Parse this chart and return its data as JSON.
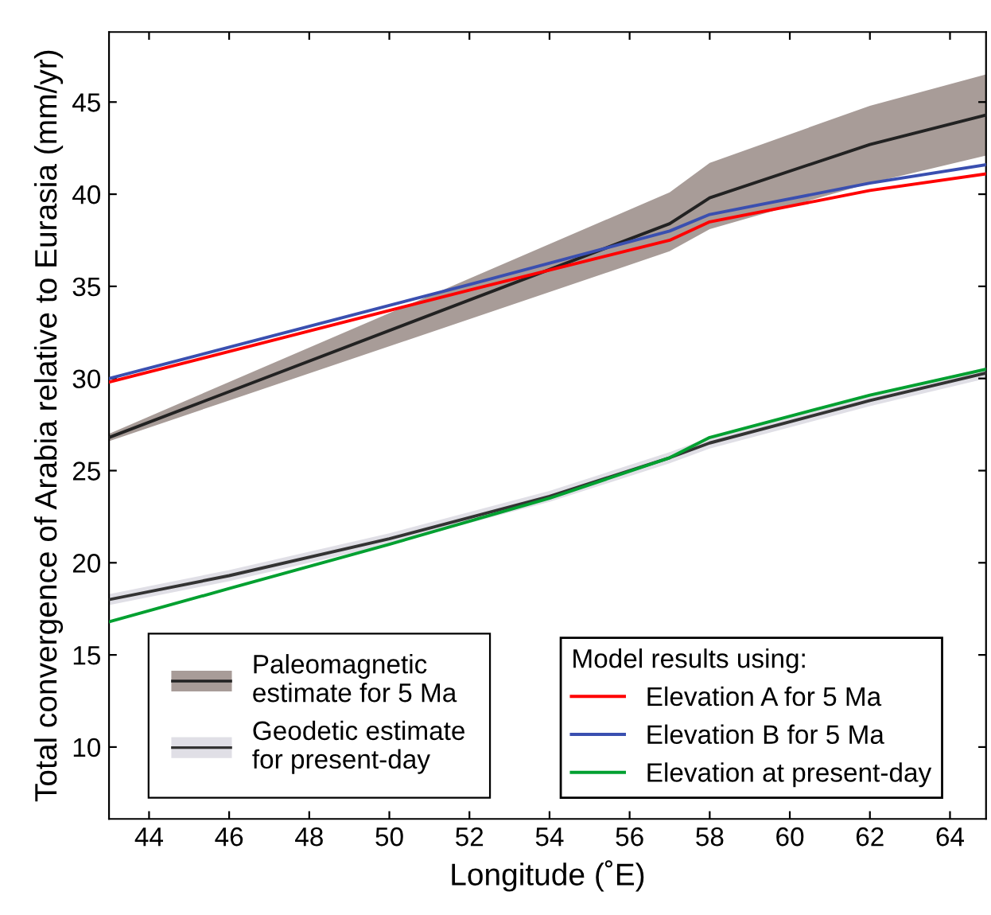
{
  "chart_data": {
    "type": "line",
    "xlabel": "Longitude (˚E)",
    "ylabel": "Total convergence of Arabia relative to Eurasia (mm/yr)",
    "legend_title": "Model results using:",
    "legend": "bottom",
    "grid": false,
    "xlim": [
      43,
      64.9
    ],
    "ylim": [
      6.1,
      48.8
    ],
    "xticks": [
      44,
      46,
      48,
      50,
      52,
      54,
      56,
      58,
      60,
      62,
      64
    ],
    "yticks": [
      10,
      15,
      20,
      25,
      30,
      35,
      40,
      45
    ],
    "series": [
      {
        "name": "Paleomagnetic\nestimate for 5 Ma",
        "color": "#222222",
        "x": [
          43,
          57,
          58,
          62,
          64.9
        ],
        "values": [
          26.8,
          38.4,
          39.8,
          42.7,
          44.3
        ],
        "lower": [
          26.6,
          36.9,
          38.1,
          40.6,
          42.1
        ],
        "upper": [
          27.0,
          40.1,
          41.7,
          44.8,
          46.5
        ]
      },
      {
        "name": "Geodetic estimate\nfor present-day",
        "color": "#333333",
        "x": [
          43,
          46,
          50,
          54,
          57,
          58,
          62,
          64.9
        ],
        "values": [
          18.0,
          19.3,
          21.3,
          23.6,
          25.7,
          26.5,
          28.8,
          30.3
        ],
        "lower": [
          17.7,
          19.0,
          21.0,
          23.3,
          25.4,
          26.2,
          28.5,
          30.0
        ],
        "upper": [
          18.3,
          19.6,
          21.6,
          23.9,
          26.0,
          26.8,
          29.1,
          30.6
        ]
      },
      {
        "name": "Elevation A for 5 Ma",
        "color": "#ff0000",
        "x": [
          43,
          52,
          57,
          58,
          62,
          64.9
        ],
        "values": [
          29.8,
          34.8,
          37.5,
          38.5,
          40.2,
          41.1
        ]
      },
      {
        "name": "Elevation B for 5 Ma",
        "color": "#3a4fb0",
        "x": [
          43,
          52,
          57,
          58,
          62,
          64.9
        ],
        "values": [
          30.0,
          35.1,
          38.0,
          38.9,
          40.6,
          41.6
        ]
      },
      {
        "name": "Elevation at present-day",
        "color": "#00a030",
        "x": [
          43,
          46,
          50,
          54,
          57,
          58,
          62,
          64.9
        ],
        "values": [
          16.8,
          18.6,
          21.0,
          23.5,
          25.7,
          26.8,
          29.1,
          30.5
        ]
      }
    ]
  }
}
